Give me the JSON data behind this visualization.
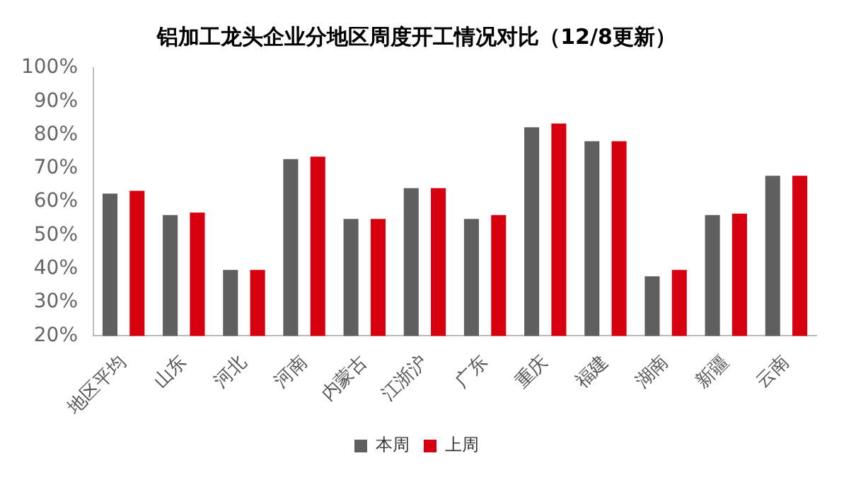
{
  "chart_data": {
    "type": "bar",
    "title": "铝加工龙头企业分地区周度开工情况对比（12/8更新）",
    "categories": [
      "地区平均",
      "山东",
      "河北",
      "河南",
      "内蒙古",
      "江浙沪",
      "广东",
      "重庆",
      "福建",
      "湖南",
      "新疆",
      "云南"
    ],
    "series": [
      {
        "name": "本周",
        "color": "#5f5f5f",
        "values": [
          62.5,
          56.1,
          39.7,
          72.8,
          54.9,
          64.1,
          54.9,
          82.3,
          78.1,
          37.8,
          56.1,
          67.8
        ]
      },
      {
        "name": "上周",
        "color": "#d7000f",
        "values": [
          63.3,
          56.8,
          39.7,
          73.5,
          54.9,
          64.1,
          56.1,
          83.4,
          78.1,
          39.7,
          56.5,
          67.8
        ]
      }
    ],
    "ylim": [
      20,
      100
    ],
    "yticks": [
      {
        "value": 20,
        "label": "20%"
      },
      {
        "value": 30,
        "label": "30%"
      },
      {
        "value": 40,
        "label": "40%"
      },
      {
        "value": 50,
        "label": "50%"
      },
      {
        "value": 60,
        "label": "60%"
      },
      {
        "value": 70,
        "label": "70%"
      },
      {
        "value": 80,
        "label": "80%"
      },
      {
        "value": 90,
        "label": "90%"
      },
      {
        "value": 100,
        "label": "100%"
      }
    ],
    "grid": false,
    "legend": "bottom"
  }
}
